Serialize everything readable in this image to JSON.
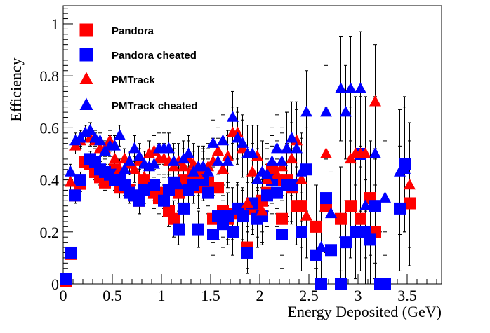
{
  "chart_data": {
    "type": "scatter",
    "xlabel": "Energy Deposited (GeV)",
    "ylabel": "Efficiency",
    "xlim": [
      0,
      3.85
    ],
    "ylim": [
      0,
      1.07
    ],
    "x_ticks": [
      "0",
      "0.5",
      "1",
      "1.5",
      "2",
      "2.5",
      "3",
      "3.5"
    ],
    "y_ticks": [
      "0",
      "0.2",
      "0.4",
      "0.6",
      "0.8",
      "1"
    ],
    "legend_position": "top-left",
    "series": [
      {
        "name": "Pandora",
        "marker": "square",
        "color": "#ff0000",
        "points": [
          [
            0.025,
            0.01,
            0.01
          ],
          [
            0.075,
            0.115,
            0.02
          ],
          [
            0.125,
            0.34,
            0.03
          ],
          [
            0.175,
            0.385,
            0.03
          ],
          [
            0.225,
            0.47,
            0.03
          ],
          [
            0.275,
            0.46,
            0.03
          ],
          [
            0.325,
            0.43,
            0.03
          ],
          [
            0.375,
            0.41,
            0.03
          ],
          [
            0.425,
            0.39,
            0.03
          ],
          [
            0.475,
            0.42,
            0.03
          ],
          [
            0.525,
            0.44,
            0.04
          ],
          [
            0.575,
            0.37,
            0.04
          ],
          [
            0.625,
            0.37,
            0.04
          ],
          [
            0.675,
            0.36,
            0.04
          ],
          [
            0.725,
            0.34,
            0.04
          ],
          [
            0.775,
            0.32,
            0.05
          ],
          [
            0.825,
            0.4,
            0.05
          ],
          [
            0.875,
            0.38,
            0.05
          ],
          [
            0.925,
            0.35,
            0.06
          ],
          [
            0.975,
            0.33,
            0.06
          ],
          [
            1.025,
            0.35,
            0.06
          ],
          [
            1.075,
            0.28,
            0.06
          ],
          [
            1.125,
            0.25,
            0.07
          ],
          [
            1.175,
            0.35,
            0.07
          ],
          [
            1.225,
            0.4,
            0.07
          ],
          [
            1.275,
            0.38,
            0.07
          ],
          [
            1.325,
            0.42,
            0.08
          ],
          [
            1.375,
            0.37,
            0.08
          ],
          [
            1.425,
            0.42,
            0.09
          ],
          [
            1.475,
            0.39,
            0.09
          ],
          [
            1.525,
            0.25,
            0.09
          ],
          [
            1.575,
            0.37,
            0.09
          ],
          [
            1.625,
            0.28,
            0.1
          ],
          [
            1.675,
            0.25,
            0.1
          ],
          [
            1.725,
            0.27,
            0.1
          ],
          [
            1.775,
            0.28,
            0.1
          ],
          [
            1.825,
            0.27,
            0.1
          ],
          [
            1.875,
            0.14,
            0.08
          ],
          [
            1.925,
            0.29,
            0.1
          ],
          [
            1.975,
            0.29,
            0.11
          ],
          [
            2.025,
            0.32,
            0.12
          ],
          [
            2.075,
            0.35,
            0.13
          ],
          [
            2.125,
            0.44,
            0.13
          ],
          [
            2.175,
            0.4,
            0.13
          ],
          [
            2.225,
            0.25,
            0.14
          ],
          [
            2.275,
            0.4,
            0.14
          ],
          [
            2.325,
            0.37,
            0.14
          ],
          [
            2.375,
            0.3,
            0.15
          ],
          [
            2.425,
            0.3,
            0.16
          ],
          [
            2.575,
            0.22,
            0.16
          ],
          [
            2.675,
            0.3,
            0.18
          ],
          [
            2.825,
            0.25,
            0.2
          ],
          [
            2.925,
            0.3,
            0.2
          ],
          [
            3.025,
            0.25,
            0.2
          ],
          [
            3.125,
            0.33,
            0.22
          ],
          [
            3.175,
            0.2,
            0.18
          ],
          [
            3.525,
            0.31,
            0.24
          ]
        ]
      },
      {
        "name": "Pandora cheated",
        "marker": "square",
        "color": "#0000ff",
        "points": [
          [
            0.025,
            0.02,
            0.01
          ],
          [
            0.075,
            0.12,
            0.02
          ],
          [
            0.125,
            0.34,
            0.03
          ],
          [
            0.175,
            0.4,
            0.03
          ],
          [
            0.275,
            0.48,
            0.03
          ],
          [
            0.325,
            0.47,
            0.03
          ],
          [
            0.375,
            0.44,
            0.03
          ],
          [
            0.425,
            0.43,
            0.03
          ],
          [
            0.475,
            0.42,
            0.04
          ],
          [
            0.525,
            0.4,
            0.04
          ],
          [
            0.575,
            0.42,
            0.04
          ],
          [
            0.625,
            0.38,
            0.04
          ],
          [
            0.675,
            0.35,
            0.04
          ],
          [
            0.725,
            0.34,
            0.04
          ],
          [
            0.775,
            0.32,
            0.05
          ],
          [
            0.825,
            0.36,
            0.05
          ],
          [
            0.925,
            0.38,
            0.06
          ],
          [
            1.025,
            0.32,
            0.06
          ],
          [
            1.075,
            0.36,
            0.06
          ],
          [
            1.125,
            0.39,
            0.06
          ],
          [
            1.175,
            0.21,
            0.06
          ],
          [
            1.225,
            0.29,
            0.07
          ],
          [
            1.275,
            0.36,
            0.07
          ],
          [
            1.325,
            0.38,
            0.07
          ],
          [
            1.375,
            0.21,
            0.07
          ],
          [
            1.425,
            0.4,
            0.08
          ],
          [
            1.475,
            0.35,
            0.08
          ],
          [
            1.525,
            0.19,
            0.08
          ],
          [
            1.575,
            0.26,
            0.09
          ],
          [
            1.625,
            0.23,
            0.09
          ],
          [
            1.675,
            0.26,
            0.09
          ],
          [
            1.725,
            0.2,
            0.09
          ],
          [
            1.775,
            0.29,
            0.1
          ],
          [
            1.825,
            0.26,
            0.1
          ],
          [
            1.875,
            0.12,
            0.08
          ],
          [
            1.925,
            0.31,
            0.1
          ],
          [
            1.975,
            0.25,
            0.11
          ],
          [
            2.025,
            0.26,
            0.11
          ],
          [
            2.075,
            0.34,
            0.12
          ],
          [
            2.125,
            0.4,
            0.13
          ],
          [
            2.175,
            0.35,
            0.13
          ],
          [
            2.225,
            0.19,
            0.13
          ],
          [
            2.275,
            0.38,
            0.14
          ],
          [
            2.325,
            0.38,
            0.14
          ],
          [
            2.425,
            0.2,
            0.15
          ],
          [
            2.475,
            0.44,
            0.16
          ],
          [
            2.575,
            0.11,
            0.12
          ],
          [
            2.625,
            0.0,
            0.15
          ],
          [
            2.675,
            0.33,
            0.18
          ],
          [
            2.725,
            0.13,
            0.14
          ],
          [
            2.825,
            0.0,
            0.18
          ],
          [
            2.875,
            0.16,
            0.16
          ],
          [
            2.975,
            0.2,
            0.18
          ],
          [
            3.025,
            0.5,
            0.22
          ],
          [
            3.075,
            0.2,
            0.2
          ],
          [
            3.125,
            0.17,
            0.18
          ],
          [
            3.175,
            0.3,
            0.22
          ],
          [
            3.225,
            0.0,
            0.2
          ],
          [
            3.275,
            0.0,
            0.2
          ],
          [
            3.425,
            0.29,
            0.24
          ],
          [
            3.475,
            0.46,
            0.26
          ]
        ]
      },
      {
        "name": "PMTrack",
        "marker": "triangle",
        "color": "#ff0000",
        "points": [
          [
            0.075,
            0.39,
            0.03
          ],
          [
            0.125,
            0.53,
            0.03
          ],
          [
            0.175,
            0.55,
            0.03
          ],
          [
            0.225,
            0.58,
            0.03
          ],
          [
            0.275,
            0.56,
            0.03
          ],
          [
            0.325,
            0.55,
            0.03
          ],
          [
            0.375,
            0.52,
            0.03
          ],
          [
            0.425,
            0.52,
            0.03
          ],
          [
            0.475,
            0.55,
            0.04
          ],
          [
            0.525,
            0.48,
            0.04
          ],
          [
            0.575,
            0.44,
            0.04
          ],
          [
            0.625,
            0.48,
            0.04
          ],
          [
            0.675,
            0.46,
            0.04
          ],
          [
            0.725,
            0.44,
            0.05
          ],
          [
            0.775,
            0.47,
            0.05
          ],
          [
            0.825,
            0.41,
            0.05
          ],
          [
            0.875,
            0.5,
            0.05
          ],
          [
            0.925,
            0.51,
            0.06
          ],
          [
            0.975,
            0.48,
            0.06
          ],
          [
            1.025,
            0.48,
            0.06
          ],
          [
            1.075,
            0.47,
            0.06
          ],
          [
            1.125,
            0.45,
            0.07
          ],
          [
            1.175,
            0.47,
            0.07
          ],
          [
            1.225,
            0.45,
            0.07
          ],
          [
            1.275,
            0.48,
            0.07
          ],
          [
            1.325,
            0.46,
            0.08
          ],
          [
            1.375,
            0.42,
            0.08
          ],
          [
            1.425,
            0.44,
            0.08
          ],
          [
            1.475,
            0.45,
            0.09
          ],
          [
            1.525,
            0.47,
            0.09
          ],
          [
            1.575,
            0.51,
            0.09
          ],
          [
            1.625,
            0.44,
            0.1
          ],
          [
            1.675,
            0.49,
            0.1
          ],
          [
            1.725,
            0.58,
            0.1
          ],
          [
            1.775,
            0.58,
            0.1
          ],
          [
            1.825,
            0.52,
            0.11
          ],
          [
            1.875,
            0.31,
            0.11
          ],
          [
            1.925,
            0.43,
            0.11
          ],
          [
            1.975,
            0.49,
            0.12
          ],
          [
            2.025,
            0.28,
            0.12
          ],
          [
            2.075,
            0.4,
            0.12
          ],
          [
            2.125,
            0.44,
            0.13
          ],
          [
            2.175,
            0.42,
            0.13
          ],
          [
            2.225,
            0.45,
            0.13
          ],
          [
            2.275,
            0.52,
            0.14
          ],
          [
            2.325,
            0.48,
            0.14
          ],
          [
            2.375,
            0.55,
            0.15
          ],
          [
            2.425,
            0.4,
            0.16
          ],
          [
            2.475,
            0.26,
            0.16
          ],
          [
            2.675,
            0.5,
            0.18
          ],
          [
            2.825,
            0.25,
            0.2
          ],
          [
            2.925,
            0.48,
            0.2
          ],
          [
            2.975,
            0.5,
            0.22
          ],
          [
            3.025,
            0.5,
            0.22
          ],
          [
            3.075,
            0.5,
            0.22
          ],
          [
            3.175,
            0.7,
            0.22
          ],
          [
            3.525,
            0.38,
            0.24
          ]
        ]
      },
      {
        "name": "PMTrack cheated",
        "marker": "triangle",
        "color": "#0000ff",
        "points": [
          [
            0.075,
            0.43,
            0.03
          ],
          [
            0.125,
            0.55,
            0.03
          ],
          [
            0.175,
            0.56,
            0.03
          ],
          [
            0.225,
            0.58,
            0.03
          ],
          [
            0.275,
            0.59,
            0.03
          ],
          [
            0.325,
            0.56,
            0.03
          ],
          [
            0.375,
            0.55,
            0.03
          ],
          [
            0.425,
            0.51,
            0.03
          ],
          [
            0.475,
            0.53,
            0.04
          ],
          [
            0.525,
            0.53,
            0.04
          ],
          [
            0.575,
            0.57,
            0.04
          ],
          [
            0.625,
            0.44,
            0.04
          ],
          [
            0.675,
            0.47,
            0.04
          ],
          [
            0.725,
            0.52,
            0.05
          ],
          [
            0.775,
            0.49,
            0.05
          ],
          [
            0.825,
            0.46,
            0.05
          ],
          [
            0.875,
            0.45,
            0.05
          ],
          [
            0.925,
            0.46,
            0.06
          ],
          [
            0.975,
            0.52,
            0.06
          ],
          [
            1.025,
            0.52,
            0.06
          ],
          [
            1.075,
            0.52,
            0.06
          ],
          [
            1.125,
            0.47,
            0.07
          ],
          [
            1.175,
            0.38,
            0.07
          ],
          [
            1.225,
            0.48,
            0.07
          ],
          [
            1.275,
            0.5,
            0.07
          ],
          [
            1.325,
            0.43,
            0.08
          ],
          [
            1.375,
            0.45,
            0.08
          ],
          [
            1.425,
            0.45,
            0.08
          ],
          [
            1.475,
            0.43,
            0.09
          ],
          [
            1.525,
            0.54,
            0.09
          ],
          [
            1.575,
            0.47,
            0.09
          ],
          [
            1.625,
            0.55,
            0.1
          ],
          [
            1.675,
            0.47,
            0.1
          ],
          [
            1.725,
            0.64,
            0.1
          ],
          [
            1.775,
            0.56,
            0.1
          ],
          [
            1.825,
            0.54,
            0.11
          ],
          [
            1.875,
            0.5,
            0.11
          ],
          [
            1.925,
            0.5,
            0.11
          ],
          [
            1.975,
            0.4,
            0.12
          ],
          [
            2.025,
            0.43,
            0.12
          ],
          [
            2.075,
            0.42,
            0.12
          ],
          [
            2.125,
            0.47,
            0.13
          ],
          [
            2.175,
            0.52,
            0.13
          ],
          [
            2.225,
            0.47,
            0.13
          ],
          [
            2.275,
            0.52,
            0.14
          ],
          [
            2.325,
            0.56,
            0.14
          ],
          [
            2.375,
            0.52,
            0.15
          ],
          [
            2.425,
            0.43,
            0.15
          ],
          [
            2.475,
            0.66,
            0.16
          ],
          [
            2.625,
            0.14,
            0.14
          ],
          [
            2.675,
            0.66,
            0.18
          ],
          [
            2.725,
            0.27,
            0.16
          ],
          [
            2.825,
            0.75,
            0.2
          ],
          [
            2.875,
            0.66,
            0.18
          ],
          [
            2.925,
            0.75,
            0.2
          ],
          [
            3.025,
            0.75,
            0.22
          ],
          [
            3.075,
            0.3,
            0.2
          ],
          [
            3.175,
            0.5,
            0.22
          ],
          [
            3.275,
            0.33,
            0.22
          ],
          [
            3.425,
            0.43,
            0.24
          ],
          [
            3.475,
            0.44,
            0.24
          ]
        ]
      }
    ]
  }
}
